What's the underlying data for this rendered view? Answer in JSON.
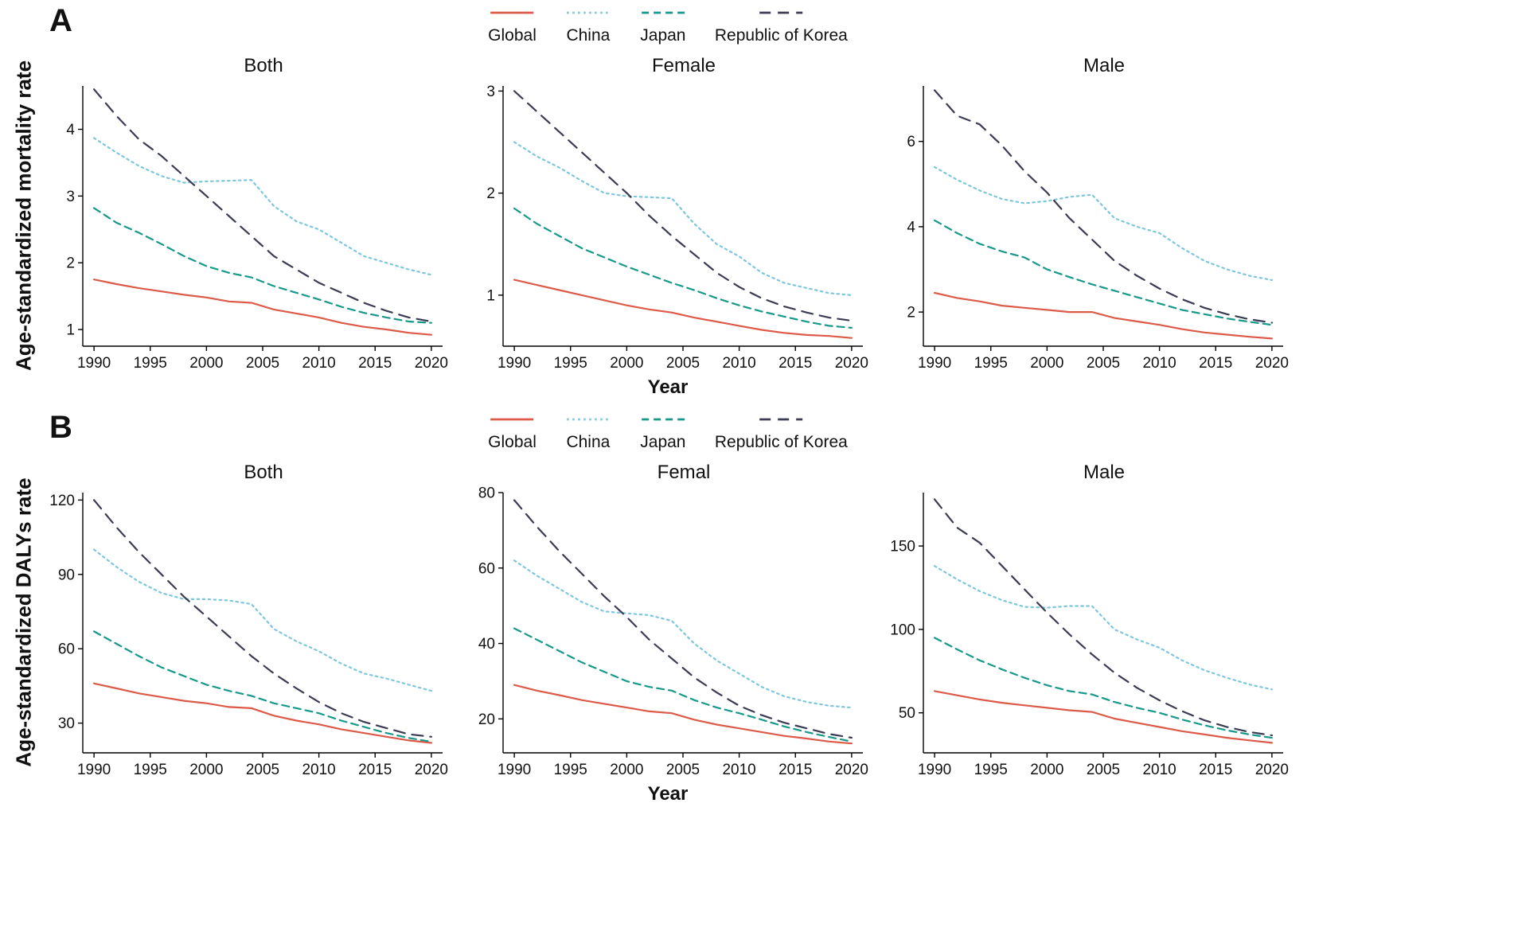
{
  "panels": [
    {
      "label": "A",
      "ylabel": "Age-standardized mortality rate",
      "xlabel": "Year"
    },
    {
      "label": "B",
      "ylabel": "Age-standardized DALYs rate",
      "xlabel": "Year"
    }
  ],
  "series_styles": [
    {
      "name": "Global",
      "color": "#dd5a48",
      "dash": ""
    },
    {
      "name": "China",
      "color": "#7cc6de",
      "dash": "2.5 4.5"
    },
    {
      "name": "Japan",
      "color": "#16998a",
      "dash": "9 6"
    },
    {
      "name": "Republic of Korea",
      "color": "#3b3b54",
      "dash": "14 9"
    }
  ],
  "chart_data": [
    {
      "id": "a-both",
      "type": "line",
      "panel": "A",
      "title": "Both",
      "x": [
        1990,
        1992,
        1994,
        1996,
        1998,
        2000,
        2002,
        2004,
        2006,
        2008,
        2010,
        2012,
        2014,
        2016,
        2018,
        2020
      ],
      "xticks": [
        1990,
        1995,
        2000,
        2005,
        2010,
        2015,
        2020
      ],
      "xlim": [
        1989,
        2021
      ],
      "yticks": [
        1,
        2,
        3,
        4
      ],
      "ylim": [
        0.75,
        4.65
      ],
      "series": [
        {
          "name": "Global",
          "values": [
            1.75,
            1.68,
            1.62,
            1.57,
            1.52,
            1.48,
            1.42,
            1.4,
            1.3,
            1.24,
            1.18,
            1.1,
            1.04,
            1.0,
            0.95,
            0.92
          ]
        },
        {
          "name": "China",
          "values": [
            3.87,
            3.65,
            3.45,
            3.3,
            3.2,
            3.22,
            3.23,
            3.24,
            2.85,
            2.62,
            2.5,
            2.3,
            2.1,
            2.0,
            1.9,
            1.82
          ]
        },
        {
          "name": "Japan",
          "values": [
            2.82,
            2.6,
            2.45,
            2.28,
            2.1,
            1.95,
            1.85,
            1.78,
            1.65,
            1.55,
            1.45,
            1.34,
            1.25,
            1.18,
            1.12,
            1.1
          ]
        },
        {
          "name": "Republic of Korea",
          "values": [
            4.6,
            4.2,
            3.85,
            3.6,
            3.3,
            3.0,
            2.7,
            2.4,
            2.1,
            1.9,
            1.7,
            1.55,
            1.4,
            1.28,
            1.18,
            1.12
          ]
        }
      ]
    },
    {
      "id": "a-female",
      "type": "line",
      "panel": "A",
      "title": "Female",
      "x": [
        1990,
        1992,
        1994,
        1996,
        1998,
        2000,
        2002,
        2004,
        2006,
        2008,
        2010,
        2012,
        2014,
        2016,
        2018,
        2020
      ],
      "xticks": [
        1990,
        1995,
        2000,
        2005,
        2010,
        2015,
        2020
      ],
      "xlim": [
        1989,
        2021
      ],
      "yticks": [
        1,
        2,
        3
      ],
      "ylim": [
        0.5,
        3.05
      ],
      "series": [
        {
          "name": "Global",
          "values": [
            1.15,
            1.1,
            1.05,
            1.0,
            0.95,
            0.9,
            0.86,
            0.83,
            0.78,
            0.74,
            0.7,
            0.66,
            0.63,
            0.61,
            0.6,
            0.58
          ]
        },
        {
          "name": "China",
          "values": [
            2.5,
            2.36,
            2.25,
            2.12,
            2.0,
            1.97,
            1.96,
            1.95,
            1.7,
            1.5,
            1.38,
            1.22,
            1.12,
            1.07,
            1.02,
            1.0
          ]
        },
        {
          "name": "Japan",
          "values": [
            1.85,
            1.7,
            1.58,
            1.46,
            1.37,
            1.28,
            1.2,
            1.12,
            1.05,
            0.97,
            0.9,
            0.84,
            0.79,
            0.74,
            0.7,
            0.68
          ]
        },
        {
          "name": "Republic of Korea",
          "values": [
            3.0,
            2.8,
            2.6,
            2.4,
            2.2,
            2.0,
            1.78,
            1.58,
            1.4,
            1.22,
            1.08,
            0.97,
            0.89,
            0.83,
            0.78,
            0.75
          ]
        }
      ]
    },
    {
      "id": "a-male",
      "type": "line",
      "panel": "A",
      "title": "Male",
      "x": [
        1990,
        1992,
        1994,
        1996,
        1998,
        2000,
        2002,
        2004,
        2006,
        2008,
        2010,
        2012,
        2014,
        2016,
        2018,
        2020
      ],
      "xticks": [
        1990,
        1995,
        2000,
        2005,
        2010,
        2015,
        2020
      ],
      "xlim": [
        1989,
        2021
      ],
      "yticks": [
        2,
        4,
        6
      ],
      "ylim": [
        1.2,
        7.3
      ],
      "series": [
        {
          "name": "Global",
          "values": [
            2.45,
            2.33,
            2.25,
            2.15,
            2.1,
            2.05,
            2.0,
            2.0,
            1.86,
            1.78,
            1.7,
            1.6,
            1.52,
            1.47,
            1.42,
            1.38
          ]
        },
        {
          "name": "China",
          "values": [
            5.4,
            5.1,
            4.85,
            4.65,
            4.55,
            4.6,
            4.7,
            4.75,
            4.2,
            4.0,
            3.85,
            3.5,
            3.2,
            3.0,
            2.85,
            2.75
          ]
        },
        {
          "name": "Japan",
          "values": [
            4.15,
            3.85,
            3.6,
            3.42,
            3.28,
            3.0,
            2.82,
            2.65,
            2.5,
            2.35,
            2.2,
            2.05,
            1.95,
            1.85,
            1.77,
            1.7
          ]
        },
        {
          "name": "Republic of Korea",
          "values": [
            7.2,
            6.6,
            6.4,
            5.9,
            5.3,
            4.8,
            4.2,
            3.7,
            3.2,
            2.85,
            2.55,
            2.3,
            2.1,
            1.95,
            1.83,
            1.75
          ]
        }
      ]
    },
    {
      "id": "b-both",
      "type": "line",
      "panel": "B",
      "title": "Both",
      "x": [
        1990,
        1992,
        1994,
        1996,
        1998,
        2000,
        2002,
        2004,
        2006,
        2008,
        2010,
        2012,
        2014,
        2016,
        2018,
        2020
      ],
      "xticks": [
        1990,
        1995,
        2000,
        2005,
        2010,
        2015,
        2020
      ],
      "xlim": [
        1989,
        2021
      ],
      "yticks": [
        30,
        60,
        90,
        120
      ],
      "ylim": [
        18,
        123
      ],
      "series": [
        {
          "name": "Global",
          "values": [
            46,
            44,
            42,
            40.5,
            39,
            38,
            36.5,
            36,
            33,
            31,
            29.5,
            27.5,
            26,
            24.5,
            23,
            22
          ]
        },
        {
          "name": "China",
          "values": [
            100,
            93,
            87,
            82.5,
            80,
            80,
            79.5,
            78,
            68,
            63,
            59,
            54,
            50,
            48,
            45.5,
            43
          ]
        },
        {
          "name": "Japan",
          "values": [
            67,
            62,
            57,
            52.5,
            49,
            45.5,
            43,
            41,
            38,
            36,
            34,
            31,
            28.5,
            26,
            24,
            22.5
          ]
        },
        {
          "name": "Republic of Korea",
          "values": [
            120,
            109,
            99,
            90,
            81,
            73,
            65,
            57,
            50,
            44,
            38.5,
            34,
            30.5,
            28,
            25.5,
            24.5
          ]
        }
      ]
    },
    {
      "id": "b-femal",
      "type": "line",
      "panel": "B",
      "title": "Femal",
      "x": [
        1990,
        1992,
        1994,
        1996,
        1998,
        2000,
        2002,
        2004,
        2006,
        2008,
        2010,
        2012,
        2014,
        2016,
        2018,
        2020
      ],
      "xticks": [
        1990,
        1995,
        2000,
        2005,
        2010,
        2015,
        2020
      ],
      "xlim": [
        1989,
        2021
      ],
      "yticks": [
        20,
        40,
        60,
        80
      ],
      "ylim": [
        11,
        80
      ],
      "series": [
        {
          "name": "Global",
          "values": [
            29,
            27.5,
            26.3,
            25,
            24,
            23,
            22,
            21.5,
            19.8,
            18.5,
            17.5,
            16.5,
            15.5,
            14.8,
            14,
            13.5
          ]
        },
        {
          "name": "China",
          "values": [
            62,
            58,
            54.5,
            51,
            48.5,
            48,
            47.5,
            46,
            40,
            35.5,
            32,
            28.5,
            26,
            24.5,
            23.5,
            23
          ]
        },
        {
          "name": "Japan",
          "values": [
            44,
            41,
            38,
            35,
            32.5,
            30,
            28.5,
            27.5,
            25,
            23,
            21.5,
            19.8,
            18,
            16.5,
            15.2,
            14
          ]
        },
        {
          "name": "Republic of Korea",
          "values": [
            78,
            71,
            64.5,
            58.5,
            52.5,
            47,
            41,
            36,
            31,
            27,
            23.5,
            21,
            19,
            17.5,
            16,
            15
          ]
        }
      ]
    },
    {
      "id": "b-male",
      "type": "line",
      "panel": "B",
      "title": "Male",
      "x": [
        1990,
        1992,
        1994,
        1996,
        1998,
        2000,
        2002,
        2004,
        2006,
        2008,
        2010,
        2012,
        2014,
        2016,
        2018,
        2020
      ],
      "xticks": [
        1990,
        1995,
        2000,
        2005,
        2010,
        2015,
        2020
      ],
      "xlim": [
        1989,
        2021
      ],
      "yticks": [
        50,
        100,
        150
      ],
      "ylim": [
        26,
        182
      ],
      "series": [
        {
          "name": "Global",
          "values": [
            63,
            60.5,
            58,
            56,
            54.5,
            53,
            51.5,
            50.5,
            46.5,
            44,
            41.5,
            39,
            37,
            35,
            33.5,
            32
          ]
        },
        {
          "name": "China",
          "values": [
            138,
            130,
            123,
            117.5,
            113.5,
            113,
            114,
            114,
            100,
            94,
            89,
            81.5,
            75.5,
            71,
            67,
            64
          ]
        },
        {
          "name": "Japan",
          "values": [
            95,
            88,
            81.5,
            76,
            71,
            66.5,
            63,
            61,
            56.5,
            53,
            50,
            46,
            42.5,
            39.5,
            37,
            35
          ]
        },
        {
          "name": "Republic of Korea",
          "values": [
            178,
            161,
            152,
            138,
            124,
            110,
            97,
            85,
            74,
            65,
            57.5,
            51,
            45.5,
            41.5,
            38.5,
            36.5
          ]
        }
      ]
    }
  ]
}
